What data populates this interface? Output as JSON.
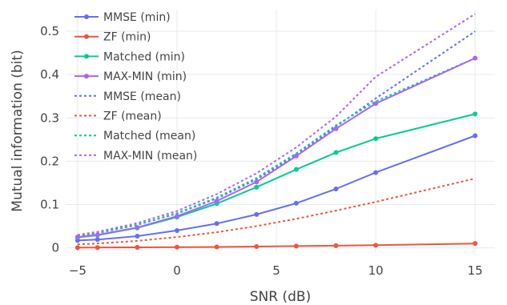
{
  "chart_data": {
    "type": "line",
    "title": "",
    "xlabel": "SNR (dB)",
    "ylabel": "Mutual information (bit)",
    "xlim": [
      -5.6,
      16.0
    ],
    "ylim": [
      -0.01,
      0.55
    ],
    "xticks": [
      -5,
      0,
      5,
      10,
      15
    ],
    "xtick_labels": [
      "−5",
      "0",
      "5",
      "10",
      "15"
    ],
    "yticks": [
      0,
      0.1,
      0.2,
      0.3,
      0.4,
      0.5
    ],
    "ytick_labels": [
      "0",
      "0.1",
      "0.2",
      "0.3",
      "0.4",
      "0.5"
    ],
    "grid": true,
    "legend_position": "top-left",
    "series": [
      {
        "name": "MMSE (min)",
        "color": "#636efa",
        "dash": "solid",
        "markers": true,
        "x": [
          -5,
          -4,
          -2,
          0,
          2,
          4,
          6,
          8,
          10,
          15
        ],
        "y": [
          0.017,
          0.019,
          0.027,
          0.04,
          0.056,
          0.077,
          0.103,
          0.136,
          0.174,
          0.259
        ]
      },
      {
        "name": "ZF (min)",
        "color": "#ef553b",
        "dash": "solid",
        "markers": true,
        "x": [
          -5,
          -4,
          -2,
          0,
          2,
          4,
          6,
          8,
          10,
          15
        ],
        "y": [
          0.0005,
          0.0007,
          0.001,
          0.0015,
          0.002,
          0.003,
          0.004,
          0.005,
          0.006,
          0.01
        ]
      },
      {
        "name": "Matched (min)",
        "color": "#00cc96",
        "dash": "solid",
        "markers": true,
        "x": [
          -5,
          -4,
          -2,
          0,
          2,
          4,
          6,
          8,
          10,
          15
        ],
        "y": [
          0.024,
          0.029,
          0.046,
          0.071,
          0.102,
          0.14,
          0.181,
          0.22,
          0.252,
          0.309
        ]
      },
      {
        "name": "MAX-MIN (min)",
        "color": "#ab63fa",
        "dash": "solid",
        "markers": true,
        "x": [
          -5,
          -4,
          -2,
          0,
          2,
          4,
          6,
          8,
          10,
          15
        ],
        "y": [
          0.025,
          0.03,
          0.047,
          0.073,
          0.108,
          0.152,
          0.212,
          0.275,
          0.333,
          0.438
        ]
      },
      {
        "name": "MMSE (mean)",
        "color": "#636efa",
        "dash": "dot",
        "markers": false,
        "x": [
          -5,
          -4,
          -2,
          0,
          2,
          4,
          6,
          8,
          10,
          15
        ],
        "y": [
          0.028,
          0.034,
          0.053,
          0.079,
          0.114,
          0.158,
          0.214,
          0.28,
          0.345,
          0.5
        ]
      },
      {
        "name": "ZF (mean)",
        "color": "#ef553b",
        "dash": "dot",
        "markers": false,
        "x": [
          -5,
          -4,
          -2,
          0,
          2,
          4,
          6,
          8,
          10,
          15
        ],
        "y": [
          0.008,
          0.01,
          0.016,
          0.025,
          0.036,
          0.05,
          0.067,
          0.086,
          0.106,
          0.16
        ]
      },
      {
        "name": "Matched (mean)",
        "color": "#00cc96",
        "dash": "dot",
        "markers": false,
        "x": [
          -5,
          -4,
          -2,
          0,
          2,
          4,
          6,
          8,
          10,
          15
        ],
        "y": [
          0.028,
          0.034,
          0.053,
          0.08,
          0.116,
          0.161,
          0.218,
          0.283,
          0.338,
          0.438
        ]
      },
      {
        "name": "MAX-MIN (mean)",
        "color": "#ab63fa",
        "dash": "dot",
        "markers": false,
        "x": [
          -5,
          -4,
          -2,
          0,
          2,
          4,
          6,
          8,
          10,
          15
        ],
        "y": [
          0.03,
          0.037,
          0.057,
          0.085,
          0.124,
          0.172,
          0.232,
          0.303,
          0.395,
          0.54
        ]
      }
    ]
  }
}
